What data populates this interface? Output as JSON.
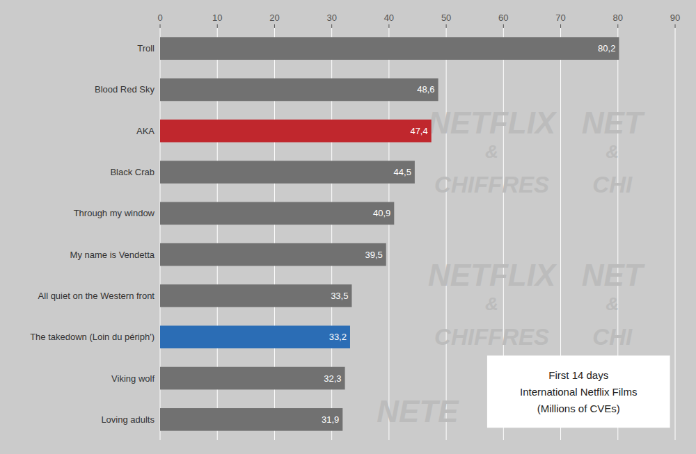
{
  "chart_data": {
    "type": "bar",
    "orientation": "horizontal",
    "subtitle": "First 14 days\nInternational Netflix Films\n(Millions of CVEs)",
    "annotations": [
      "NETFLIX",
      "&",
      "CHIFFRES",
      "NET",
      "&",
      "CHI",
      "NETFLIX",
      "&",
      "CHIFFRES",
      "NET",
      "&",
      "CHI",
      "NETE"
    ],
    "categories": [
      "Loving adults",
      "Viking wolf",
      "The takedown (Loin du périph')",
      "All quiet on the Western front",
      "My name is Vendetta",
      "Through my window",
      "Black Crab",
      "AKA",
      "Blood Red Sky",
      "Troll"
    ],
    "values": [
      31.9,
      32.3,
      33.2,
      33.5,
      39.5,
      40.9,
      44.5,
      47.4,
      48.6,
      80.2
    ],
    "value_labels": [
      "31,9",
      "32,3",
      "33,2",
      "33,5",
      "39,5",
      "40,9",
      "44,5",
      "47,4",
      "48,6",
      "80,2"
    ],
    "colors": [
      "#717171",
      "#717171",
      "#2B6DB5",
      "#717171",
      "#717171",
      "#717171",
      "#717171",
      "#C0272D",
      "#717171",
      "#717171"
    ],
    "data_labels": true,
    "xlim": [
      0,
      90
    ],
    "xticks": [
      0,
      10,
      20,
      30,
      40,
      50,
      60,
      70,
      80,
      90
    ],
    "grid": true
  }
}
